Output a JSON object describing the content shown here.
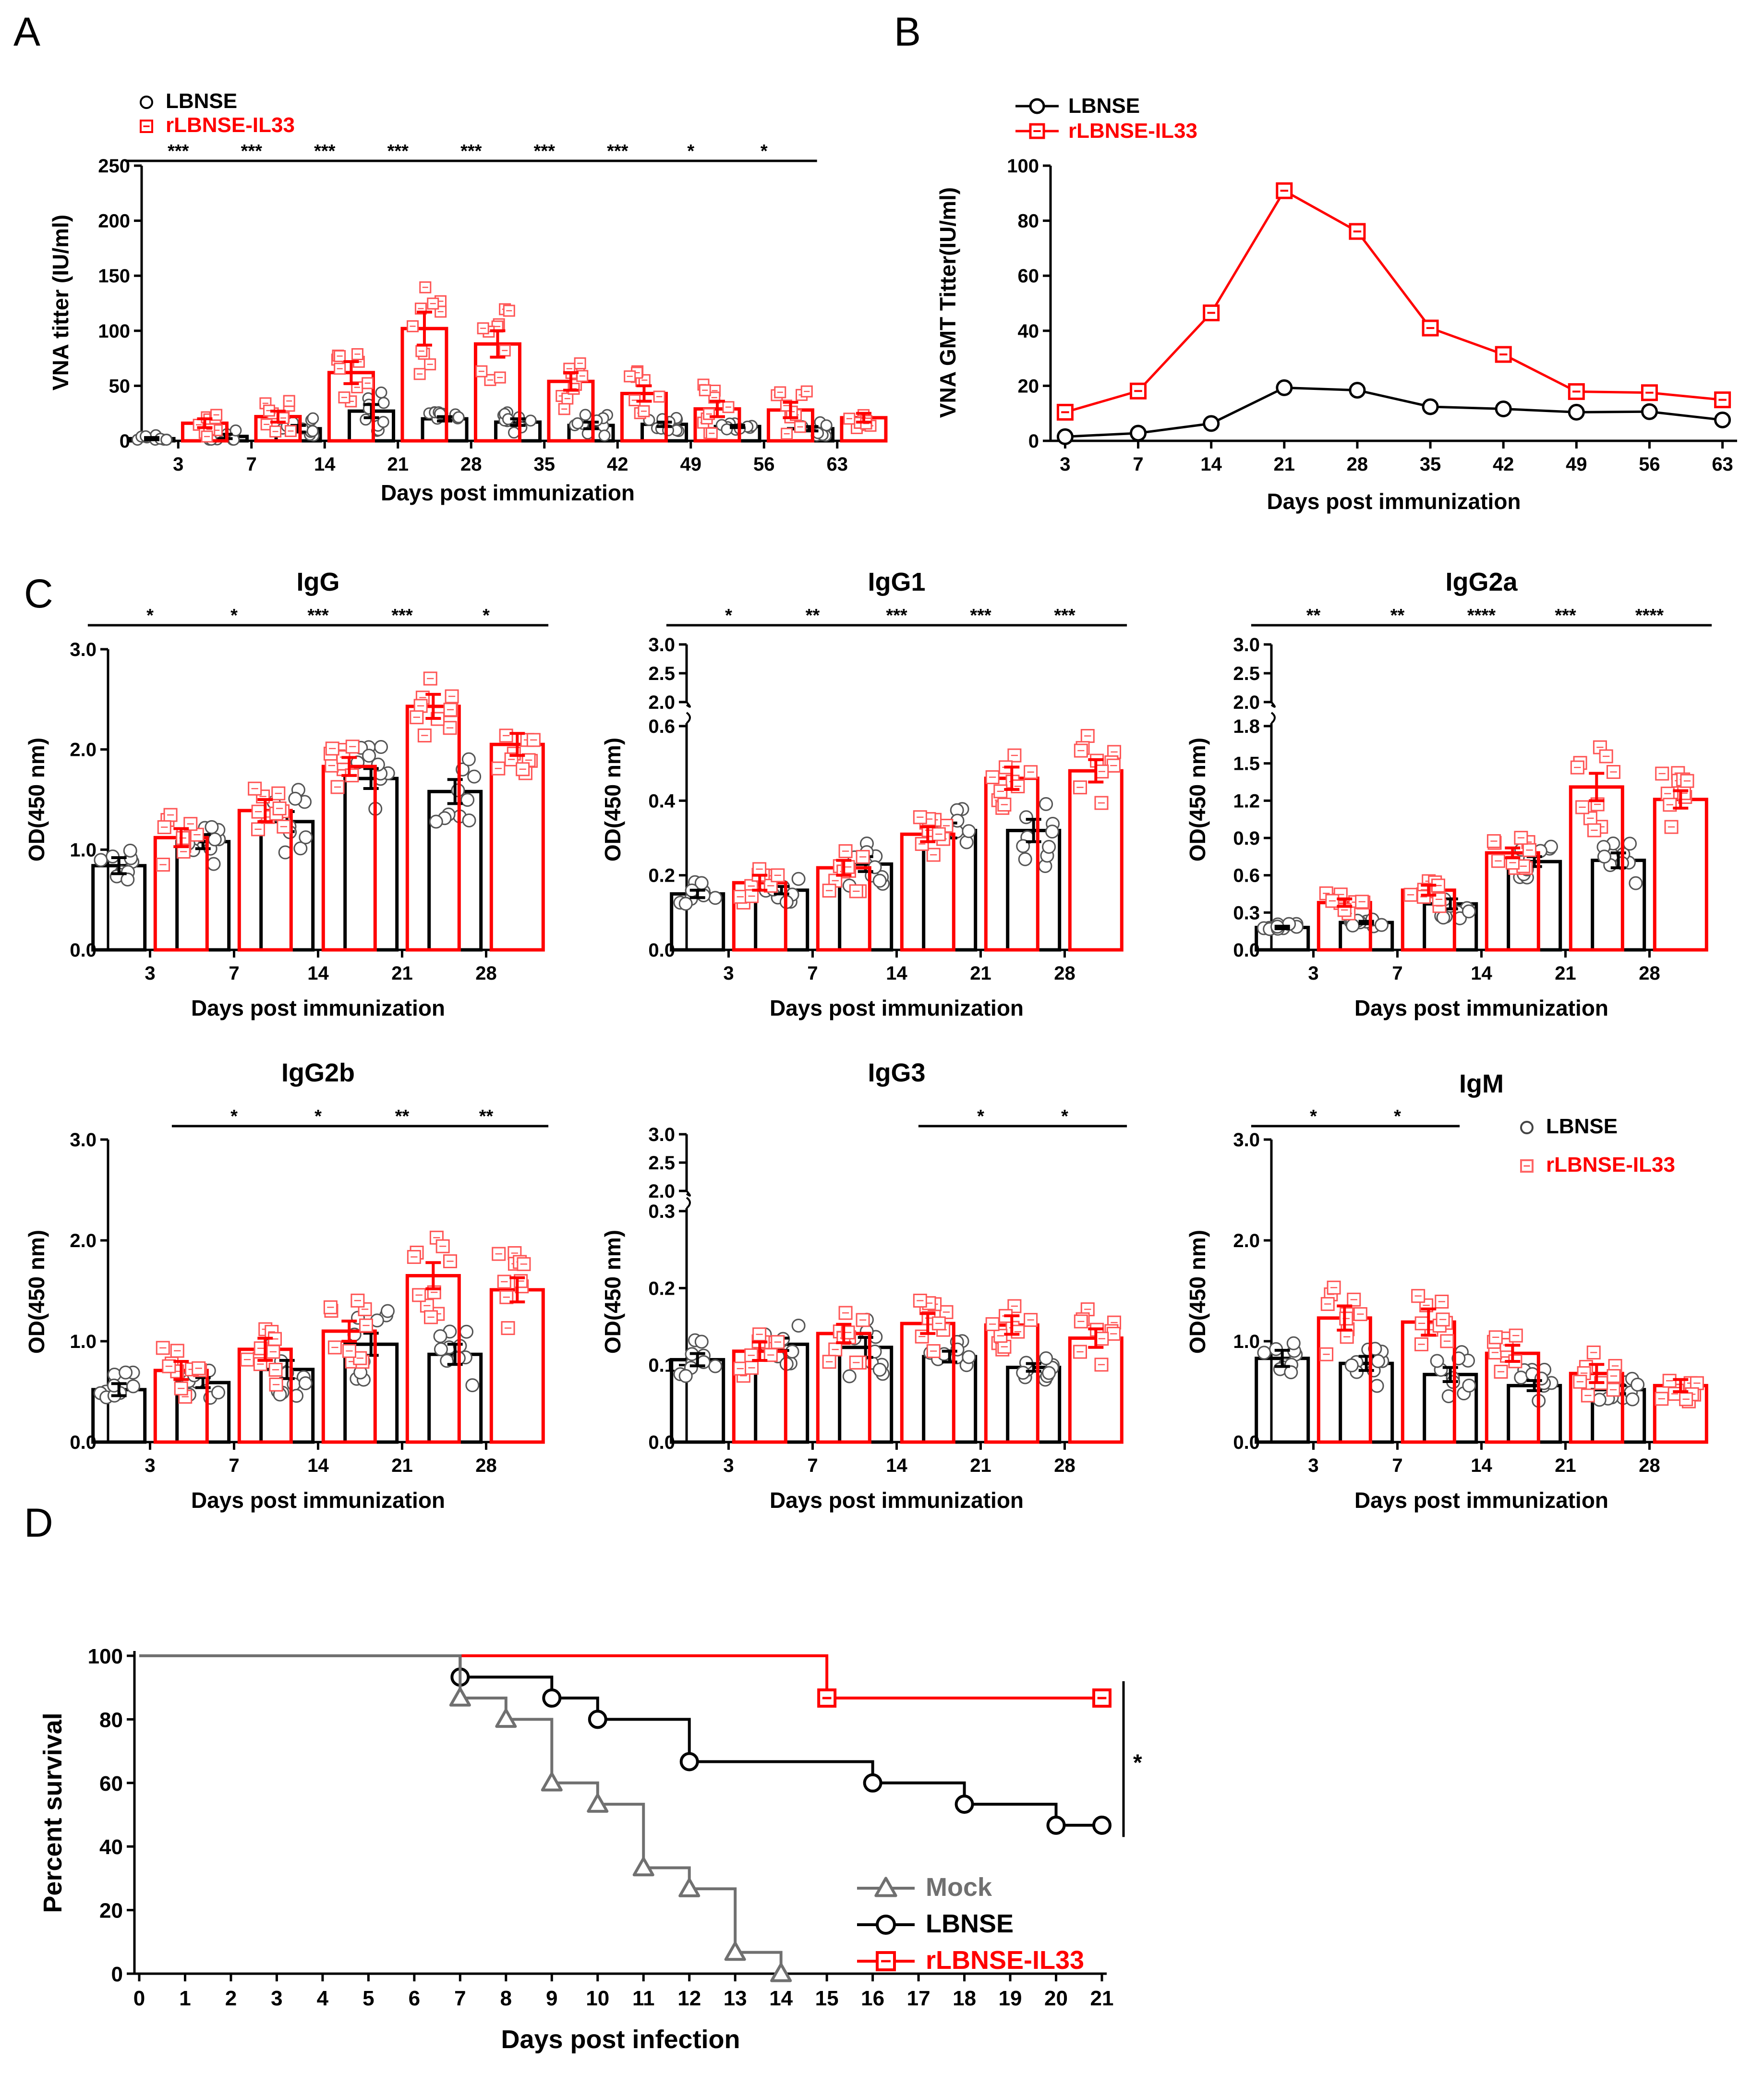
{
  "panel_labels": [
    "A",
    "B",
    "C",
    "D"
  ],
  "chart_data": [
    {
      "id": "A",
      "type": "bar",
      "categories": [
        "3",
        "7",
        "14",
        "21",
        "28",
        "35",
        "42",
        "49",
        "56",
        "63"
      ],
      "xlabel": "Days post immunization",
      "ylabel": "VNA  titter (IU/ml)",
      "ylim": [
        0,
        250
      ],
      "yticks": [
        "0",
        "50",
        "100",
        "150",
        "200",
        "250"
      ],
      "legend": [
        {
          "name": "LBNSE",
          "marker": "circle",
          "color": "#000000"
        },
        {
          "name": "rLBNSE-IL33",
          "marker": "square",
          "color": "#ff0000"
        }
      ],
      "series": [
        {
          "name": "LBNSE",
          "values": [
            2,
            4,
            11,
            27,
            20,
            17,
            14,
            15,
            13,
            11
          ],
          "errors": [
            1,
            2,
            3,
            6,
            2,
            3,
            3,
            2,
            1,
            2
          ]
        },
        {
          "name": "rLBNSE-IL33",
          "values": [
            16,
            22,
            62,
            102,
            88,
            54,
            43,
            29,
            28,
            21
          ],
          "errors": [
            4,
            5,
            10,
            15,
            12,
            8,
            7,
            7,
            7,
            4
          ]
        }
      ],
      "significance": [
        "***",
        "***",
        "***",
        "***",
        "***",
        "***",
        "***",
        "*",
        "*",
        ""
      ]
    },
    {
      "id": "B",
      "type": "line",
      "categories": [
        "3",
        "7",
        "14",
        "21",
        "28",
        "35",
        "42",
        "49",
        "56",
        "63"
      ],
      "xlabel": "Days post immunization",
      "ylabel": "VNA GMT Titter(IU/ml)",
      "ylim": [
        0,
        100
      ],
      "yticks": [
        "0",
        "20",
        "40",
        "60",
        "80",
        "100"
      ],
      "series": [
        {
          "name": "LBNSE",
          "marker": "circle",
          "color": "#000000",
          "values": [
            1.5,
            2.8,
            6.3,
            19.3,
            18.4,
            12.4,
            11.6,
            10.4,
            10.6,
            7.6
          ]
        },
        {
          "name": "rLBNSE-IL33",
          "marker": "square",
          "color": "#ff0000",
          "values": [
            10.4,
            18.1,
            46.5,
            90.9,
            76.1,
            41.0,
            31.4,
            17.9,
            17.5,
            14.9
          ]
        }
      ]
    },
    {
      "id": "IgG",
      "type": "bar",
      "title": "IgG",
      "categories": [
        "3",
        "7",
        "14",
        "21",
        "28"
      ],
      "xlabel": "Days post immunization",
      "ylabel": "OD(450 nm)",
      "ylim": [
        0,
        3.0
      ],
      "yticks": [
        "0.0",
        "1.0",
        "2.0",
        "3.0"
      ],
      "series": [
        {
          "name": "LBNSE",
          "values": [
            0.84,
            1.08,
            1.28,
            1.71,
            1.58
          ],
          "errors": [
            0.08,
            0.07,
            0.1,
            0.1,
            0.12
          ]
        },
        {
          "name": "rLBNSE-IL33",
          "values": [
            1.12,
            1.39,
            1.83,
            2.43,
            2.05
          ],
          "errors": [
            0.09,
            0.11,
            0.09,
            0.12,
            0.11
          ]
        }
      ],
      "significance": [
        "*",
        "*",
        "***",
        "***",
        "*"
      ]
    },
    {
      "id": "IgG1",
      "type": "bar",
      "title": "IgG1",
      "categories": [
        "3",
        "7",
        "14",
        "21",
        "28"
      ],
      "xlabel": "Days post immunization",
      "ylabel": "OD(450 nm)",
      "ylim": [
        0,
        0.6
      ],
      "ylim_upper": [
        2.0,
        3.0
      ],
      "yticks": [
        "0.0",
        "0.2",
        "0.4",
        "0.6"
      ],
      "yticks_upper": [
        "2.0",
        "2.5",
        "3.0"
      ],
      "series": [
        {
          "name": "LBNSE",
          "values": [
            0.15,
            0.16,
            0.23,
            0.32,
            0.32
          ],
          "errors": [
            0.01,
            0.01,
            0.02,
            0.02,
            0.03
          ]
        },
        {
          "name": "rLBNSE-IL33",
          "values": [
            0.18,
            0.22,
            0.31,
            0.46,
            0.48
          ],
          "errors": [
            0.02,
            0.02,
            0.02,
            0.03,
            0.03
          ]
        }
      ],
      "significance": [
        "*",
        "**",
        "***",
        "***",
        "***"
      ]
    },
    {
      "id": "IgG2a",
      "type": "bar",
      "title": "IgG2a",
      "categories": [
        "3",
        "7",
        "14",
        "21",
        "28"
      ],
      "xlabel": "Days post immunization",
      "ylabel": "OD(450 nm)",
      "ylim": [
        0,
        1.8
      ],
      "ylim_upper": [
        2.0,
        3.0
      ],
      "yticks": [
        "0.0",
        "0.3",
        "0.6",
        "0.9",
        "1.2",
        "1.5",
        "1.8"
      ],
      "yticks_upper": [
        "2.0",
        "2.5",
        "3.0"
      ],
      "series": [
        {
          "name": "LBNSE",
          "values": [
            0.18,
            0.22,
            0.37,
            0.71,
            0.72
          ],
          "errors": [
            0.01,
            0.01,
            0.04,
            0.04,
            0.06
          ]
        },
        {
          "name": "rLBNSE-IL33",
          "values": [
            0.38,
            0.48,
            0.78,
            1.31,
            1.21
          ],
          "errors": [
            0.03,
            0.04,
            0.04,
            0.11,
            0.07
          ]
        }
      ],
      "significance": [
        "**",
        "**",
        "****",
        "***",
        "****"
      ]
    },
    {
      "id": "IgG2b",
      "type": "bar",
      "title": "IgG2b",
      "categories": [
        "3",
        "7",
        "14",
        "21",
        "28"
      ],
      "xlabel": "Days post immunization",
      "ylabel": "OD(450 nm)",
      "ylim": [
        0,
        3.0
      ],
      "yticks": [
        "0.0",
        "1.0",
        "2.0",
        "3.0"
      ],
      "series": [
        {
          "name": "LBNSE",
          "values": [
            0.52,
            0.59,
            0.72,
            0.97,
            0.87
          ],
          "errors": [
            0.06,
            0.05,
            0.09,
            0.11,
            0.1
          ]
        },
        {
          "name": "rLBNSE-IL33",
          "values": [
            0.71,
            0.92,
            1.1,
            1.65,
            1.51
          ],
          "errors": [
            0.09,
            0.11,
            0.1,
            0.13,
            0.12
          ]
        }
      ],
      "significance": [
        "",
        "*",
        "*",
        "**",
        "**"
      ]
    },
    {
      "id": "IgG3",
      "type": "bar",
      "title": "IgG3",
      "categories": [
        "3",
        "7",
        "14",
        "21",
        "28"
      ],
      "xlabel": "Days post immunization",
      "ylabel": "OD(450 nm)",
      "ylim": [
        0,
        0.3
      ],
      "ylim_upper": [
        2.0,
        3.0
      ],
      "yticks": [
        "0.0",
        "0.1",
        "0.2",
        "0.3"
      ],
      "yticks_upper": [
        "2.0",
        "2.5",
        "3.0"
      ],
      "series": [
        {
          "name": "LBNSE",
          "values": [
            0.107,
            0.127,
            0.123,
            0.111,
            0.097
          ],
          "errors": [
            0.008,
            0.008,
            0.013,
            0.007,
            0.005
          ]
        },
        {
          "name": "rLBNSE-IL33",
          "values": [
            0.118,
            0.141,
            0.154,
            0.152,
            0.135
          ],
          "errors": [
            0.012,
            0.012,
            0.013,
            0.012,
            0.012
          ]
        }
      ],
      "significance": [
        "",
        "",
        "",
        "*",
        "*"
      ]
    },
    {
      "id": "IgM",
      "type": "bar",
      "title": "IgM",
      "categories": [
        "3",
        "7",
        "14",
        "21",
        "28"
      ],
      "xlabel": "Days post immunization",
      "ylabel": "OD(450 nm)",
      "ylim": [
        0,
        3.0
      ],
      "yticks": [
        "0.0",
        "1.0",
        "2.0",
        "3.0"
      ],
      "legend": [
        {
          "name": "LBNSE",
          "marker": "circle",
          "color": "#444444"
        },
        {
          "name": "rLBNSE-IL33",
          "marker": "square",
          "color": "#ff6666"
        }
      ],
      "series": [
        {
          "name": "LBNSE",
          "values": [
            0.83,
            0.78,
            0.67,
            0.56,
            0.52
          ],
          "errors": [
            0.08,
            0.07,
            0.07,
            0.05,
            0.04
          ]
        },
        {
          "name": "rLBNSE-IL33",
          "values": [
            1.23,
            1.19,
            0.88,
            0.68,
            0.56
          ],
          "errors": [
            0.12,
            0.13,
            0.08,
            0.09,
            0.06
          ]
        }
      ],
      "significance": [
        "*",
        "*",
        "",
        "",
        ""
      ]
    },
    {
      "id": "D",
      "type": "line",
      "subtype": "survival",
      "xlabel": "Days post infection",
      "ylabel": "Percent survival",
      "xlim": [
        0,
        21
      ],
      "ylim": [
        0,
        100
      ],
      "xticks": [
        "0",
        "1",
        "2",
        "3",
        "4",
        "5",
        "6",
        "7",
        "8",
        "9",
        "10",
        "11",
        "12",
        "13",
        "14",
        "15",
        "16",
        "17",
        "18",
        "19",
        "20",
        "21"
      ],
      "yticks": [
        "0",
        "20",
        "40",
        "60",
        "80",
        "100"
      ],
      "legend": [
        {
          "name": "Mock",
          "marker": "triangle",
          "color": "#707070"
        },
        {
          "name": "LBNSE",
          "marker": "circle",
          "color": "#000000"
        },
        {
          "name": "rLBNSE-IL33",
          "marker": "square",
          "color": "#ff0000"
        }
      ],
      "series": [
        {
          "name": "Mock",
          "steps": [
            [
              0,
              100
            ],
            [
              7,
              86.7
            ],
            [
              8,
              80
            ],
            [
              9,
              60
            ],
            [
              10,
              53.3
            ],
            [
              11,
              33.3
            ],
            [
              12,
              26.7
            ],
            [
              13,
              6.7
            ],
            [
              14,
              0
            ]
          ]
        },
        {
          "name": "LBNSE",
          "steps": [
            [
              0,
              100
            ],
            [
              7,
              93.3
            ],
            [
              9,
              86.7
            ],
            [
              10,
              80
            ],
            [
              12,
              66.7
            ],
            [
              16,
              60
            ],
            [
              18,
              53.3
            ],
            [
              20,
              46.7
            ],
            [
              21,
              46.7
            ]
          ]
        },
        {
          "name": "rLBNSE-IL33",
          "steps": [
            [
              0,
              100
            ],
            [
              15,
              86.7
            ],
            [
              21,
              86.7
            ]
          ]
        }
      ],
      "significance": "*"
    }
  ]
}
